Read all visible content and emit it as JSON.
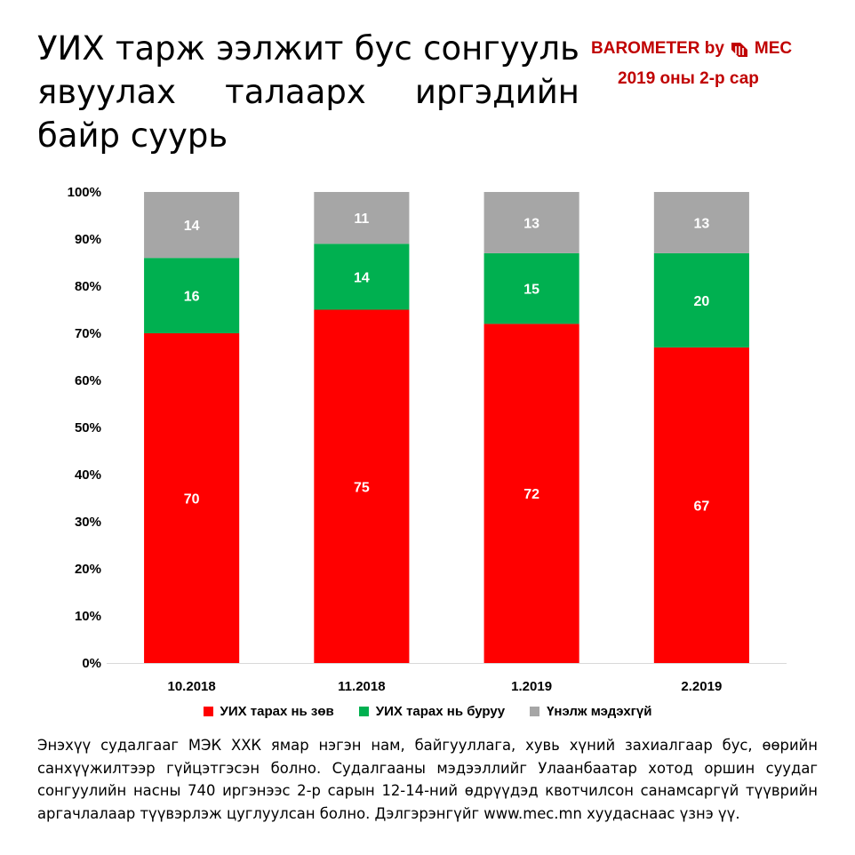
{
  "title": "УИХ тарж ээлжит бус сонгууль явуулах талаарх иргэдийн байр суурь",
  "brand": {
    "name": "BAROMETER by",
    "logo_text": "MEC",
    "logo_icon": "mec-logo-icon",
    "subtitle": "2019 оны 2-р сар",
    "color": "#c00000"
  },
  "chart_data": {
    "type": "bar",
    "stacked": true,
    "categories": [
      "10.2018",
      "11.2018",
      "1.2019",
      "2.2019"
    ],
    "series": [
      {
        "name": "УИХ тарах нь зөв",
        "color": "#ff0000",
        "values": [
          70,
          75,
          72,
          67
        ]
      },
      {
        "name": "УИХ тарах нь буруу",
        "color": "#00b050",
        "values": [
          16,
          14,
          15,
          20
        ]
      },
      {
        "name": "Үнэлж мэдэхгүй",
        "color": "#a6a6a6",
        "values": [
          14,
          11,
          13,
          13
        ]
      }
    ],
    "yticks": [
      "0%",
      "10%",
      "20%",
      "30%",
      "40%",
      "50%",
      "60%",
      "70%",
      "80%",
      "90%",
      "100%"
    ],
    "ylim": [
      0,
      100
    ],
    "grid": false,
    "legend_position": "bottom",
    "data_labels": true
  },
  "note": "Энэхүү судалгааг МЭК ХХК ямар нэгэн нам, байгууллага, хувь хүний захиалгаар бус, өөрийн санхүүжилтээр гүйцэтгэсэн болно. Судалгааны мэдээллийг Улаанбаатар хотод оршин суудаг сонгуулийн насны 740 иргэнээс 2-р сарын 12-14-ний өдрүүдэд квотчилсон санамсаргүй түүврийн аргачлалаар түүвэрлэж цуглуулсан болно. Дэлгэрэнгүйг www.mec.mn хуудаснаас үзнэ үү."
}
